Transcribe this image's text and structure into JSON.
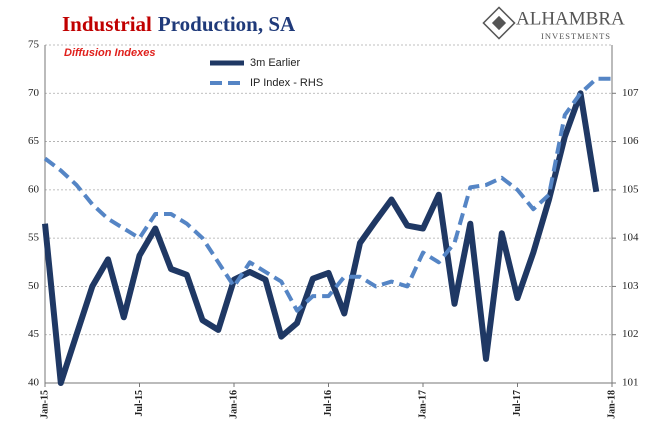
{
  "chart_data": {
    "type": "line",
    "title": [
      "Industrial",
      "Production, SA"
    ],
    "subtitle": "Diffusion Indexes",
    "logo": {
      "name": "ALHAMBRA",
      "tagline": "INVESTMENTS"
    },
    "categories": [
      "Jan-15",
      null,
      null,
      null,
      null,
      null,
      "Jul-15",
      null,
      null,
      null,
      null,
      null,
      "Jan-16",
      null,
      null,
      null,
      null,
      null,
      "Jul-16",
      null,
      null,
      null,
      null,
      null,
      "Jan-17",
      null,
      null,
      null,
      null,
      null,
      "Jul-17",
      null,
      null,
      null,
      null,
      null,
      "Jan-18"
    ],
    "series": [
      {
        "name": "3m Earlier",
        "color": "#1f3864",
        "values": [
          56.5,
          40,
          45,
          50,
          52.8,
          46.8,
          53.2,
          56,
          51.8,
          51.2,
          46.5,
          45.5,
          50.7,
          51.5,
          50.7,
          44.8,
          46.2,
          50.8,
          51.4,
          47.2,
          54.5,
          56.8,
          59,
          56.3,
          56,
          59.5,
          48.2,
          56.5,
          42.5,
          55.5,
          48.8,
          53.5,
          59,
          65.5,
          70,
          59.8,
          null
        ]
      },
      {
        "name": "IP Index - RHS",
        "color": "#5585c5",
        "axis": "y2",
        "dashed": true,
        "values": [
          105.65,
          105.4,
          105.1,
          104.7,
          104.4,
          104.2,
          104.0,
          104.5,
          104.5,
          104.3,
          104.0,
          103.5,
          103.0,
          103.5,
          103.3,
          103.1,
          102.5,
          102.8,
          102.8,
          103.2,
          103.2,
          103.0,
          103.1,
          103.0,
          103.7,
          103.5,
          103.9,
          105.05,
          105.1,
          105.25,
          105.0,
          104.6,
          104.9,
          106.55,
          107.0,
          107.3,
          107.3
        ]
      }
    ],
    "ylim": [
      40,
      75
    ],
    "yticks": [
      40,
      45,
      50,
      55,
      60,
      65,
      70,
      75
    ],
    "y2lim": [
      101,
      108
    ],
    "y2ticks": [
      101,
      102,
      103,
      104,
      105,
      106,
      107
    ],
    "grid": true
  }
}
